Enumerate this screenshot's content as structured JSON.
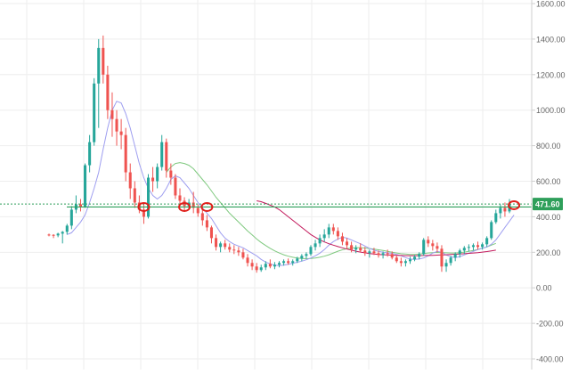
{
  "chart_data": {
    "type": "candlestick",
    "title": "",
    "xlabel": "",
    "ylabel": "",
    "ylim": [
      -460,
      1620
    ],
    "y_axis_side": "right",
    "y_ticks": [
      "1600.00",
      "1400.00",
      "1200.00",
      "1000.00",
      "800.00",
      "600.00",
      "400.00",
      "200.00",
      "0.00",
      "-200.00",
      "-400.00"
    ],
    "y_tick_values": [
      1600,
      1400,
      1200,
      1000,
      800,
      600,
      400,
      200,
      0,
      -200,
      -400
    ],
    "grid": true,
    "current_price_label": "471.60",
    "current_price": 471.6,
    "support_level": 455,
    "colors": {
      "up": "#26a69a",
      "down": "#ef5350",
      "price_line": "#2e9f5a",
      "price_badge": "#2e9f5a",
      "ma_fast": "#9e9ef0",
      "ma_mid": "#7fc97f",
      "ma_slow": "#c2185b",
      "markers": "#e0201b",
      "axis_text": "#666666",
      "grid": "#eeeeee"
    },
    "candles": [
      [
        300,
        305,
        290,
        298
      ],
      [
        298,
        302,
        280,
        295
      ],
      [
        295,
        310,
        285,
        305
      ],
      [
        305,
        320,
        250,
        315
      ],
      [
        315,
        360,
        300,
        350
      ],
      [
        350,
        460,
        330,
        440
      ],
      [
        440,
        520,
        420,
        470
      ],
      [
        470,
        500,
        430,
        455
      ],
      [
        455,
        700,
        450,
        690
      ],
      [
        690,
        860,
        650,
        820
      ],
      [
        820,
        1180,
        800,
        1150
      ],
      [
        1150,
        1400,
        900,
        1350
      ],
      [
        1350,
        1420,
        1150,
        1200
      ],
      [
        1200,
        1250,
        950,
        1000
      ],
      [
        1000,
        1100,
        850,
        950
      ],
      [
        950,
        1000,
        800,
        880
      ],
      [
        880,
        950,
        780,
        860
      ],
      [
        860,
        900,
        600,
        650
      ],
      [
        650,
        700,
        500,
        560
      ],
      [
        560,
        600,
        450,
        480
      ],
      [
        480,
        520,
        420,
        440
      ],
      [
        440,
        470,
        360,
        400
      ],
      [
        400,
        640,
        390,
        620
      ],
      [
        620,
        680,
        540,
        600
      ],
      [
        600,
        700,
        560,
        680
      ],
      [
        680,
        860,
        660,
        820
      ],
      [
        820,
        840,
        620,
        660
      ],
      [
        660,
        700,
        580,
        620
      ],
      [
        620,
        640,
        500,
        520
      ],
      [
        520,
        560,
        470,
        490
      ],
      [
        490,
        510,
        430,
        460
      ],
      [
        460,
        500,
        440,
        480
      ],
      [
        480,
        540,
        420,
        450
      ],
      [
        450,
        470,
        400,
        420
      ],
      [
        420,
        450,
        350,
        380
      ],
      [
        380,
        410,
        320,
        340
      ],
      [
        340,
        350,
        250,
        280
      ],
      [
        280,
        300,
        210,
        230
      ],
      [
        230,
        260,
        200,
        250
      ],
      [
        250,
        270,
        215,
        230
      ],
      [
        230,
        250,
        200,
        215
      ],
      [
        215,
        240,
        190,
        210
      ],
      [
        210,
        230,
        180,
        200
      ],
      [
        200,
        220,
        160,
        170
      ],
      [
        170,
        190,
        120,
        140
      ],
      [
        140,
        160,
        100,
        120
      ],
      [
        120,
        140,
        85,
        100
      ],
      [
        100,
        130,
        90,
        115
      ],
      [
        115,
        150,
        100,
        135
      ],
      [
        135,
        160,
        110,
        120
      ],
      [
        120,
        145,
        105,
        130
      ],
      [
        130,
        150,
        115,
        140
      ],
      [
        140,
        160,
        125,
        150
      ],
      [
        150,
        165,
        130,
        140
      ],
      [
        140,
        160,
        125,
        150
      ],
      [
        150,
        175,
        140,
        165
      ],
      [
        165,
        190,
        150,
        180
      ],
      [
        180,
        200,
        165,
        190
      ],
      [
        190,
        240,
        180,
        230
      ],
      [
        230,
        270,
        210,
        250
      ],
      [
        250,
        300,
        230,
        280
      ],
      [
        280,
        330,
        260,
        300
      ],
      [
        300,
        360,
        280,
        340
      ],
      [
        340,
        360,
        300,
        320
      ],
      [
        320,
        340,
        270,
        290
      ],
      [
        290,
        310,
        240,
        260
      ],
      [
        260,
        280,
        220,
        240
      ],
      [
        240,
        260,
        200,
        215
      ],
      [
        215,
        240,
        195,
        225
      ],
      [
        225,
        250,
        200,
        210
      ],
      [
        210,
        230,
        180,
        195
      ],
      [
        195,
        215,
        170,
        205
      ],
      [
        205,
        225,
        185,
        195
      ],
      [
        195,
        210,
        170,
        185
      ],
      [
        185,
        205,
        165,
        195
      ],
      [
        195,
        215,
        175,
        190
      ],
      [
        190,
        205,
        160,
        170
      ],
      [
        170,
        185,
        140,
        150
      ],
      [
        150,
        170,
        120,
        140
      ],
      [
        140,
        160,
        120,
        150
      ],
      [
        150,
        175,
        135,
        160
      ],
      [
        160,
        185,
        150,
        175
      ],
      [
        175,
        200,
        160,
        190
      ],
      [
        190,
        280,
        180,
        270
      ],
      [
        270,
        290,
        230,
        250
      ],
      [
        250,
        270,
        210,
        235
      ],
      [
        235,
        255,
        200,
        220
      ],
      [
        220,
        240,
        90,
        120
      ],
      [
        120,
        160,
        90,
        140
      ],
      [
        140,
        180,
        125,
        170
      ],
      [
        170,
        200,
        150,
        190
      ],
      [
        190,
        220,
        170,
        210
      ],
      [
        210,
        235,
        190,
        225
      ],
      [
        225,
        245,
        205,
        230
      ],
      [
        230,
        250,
        210,
        240
      ],
      [
        240,
        260,
        215,
        230
      ],
      [
        230,
        255,
        215,
        245
      ],
      [
        245,
        290,
        230,
        280
      ],
      [
        280,
        380,
        270,
        370
      ],
      [
        370,
        440,
        360,
        420
      ],
      [
        420,
        470,
        390,
        450
      ],
      [
        450,
        480,
        400,
        430
      ],
      [
        430,
        500,
        420,
        471.6
      ]
    ],
    "ma_fast": [
      null,
      null,
      null,
      null,
      300,
      310,
      340,
      370,
      410,
      480,
      560,
      650,
      780,
      900,
      1000,
      1050,
      1040,
      980,
      900,
      800,
      700,
      620,
      560,
      520,
      500,
      520,
      560,
      610,
      630,
      620,
      590,
      560,
      520,
      480,
      450,
      420,
      390,
      350,
      310,
      280,
      260,
      245,
      235,
      225,
      210,
      195,
      180,
      160,
      145,
      135,
      128,
      125,
      128,
      132,
      138,
      144,
      150,
      158,
      168,
      180,
      195,
      215,
      240,
      260,
      275,
      285,
      280,
      270,
      258,
      248,
      235,
      222,
      212,
      205,
      200,
      197,
      194,
      188,
      180,
      170,
      162,
      160,
      162,
      168,
      180,
      195,
      205,
      200,
      185,
      175,
      170,
      175,
      185,
      195,
      205,
      215,
      222,
      230,
      245,
      270,
      305,
      340,
      375,
      410
    ],
    "ma_mid": [
      null,
      null,
      null,
      null,
      null,
      null,
      null,
      null,
      null,
      null,
      null,
      null,
      null,
      null,
      null,
      null,
      null,
      null,
      null,
      null,
      null,
      null,
      null,
      null,
      null,
      null,
      650,
      680,
      700,
      705,
      700,
      690,
      670,
      640,
      610,
      580,
      545,
      510,
      480,
      450,
      420,
      395,
      370,
      345,
      320,
      298,
      275,
      255,
      238,
      222,
      208,
      196,
      186,
      178,
      172,
      168,
      165,
      164,
      165,
      168,
      172,
      178,
      186,
      196,
      206,
      214,
      220,
      224,
      226,
      226,
      224,
      221,
      218,
      214,
      210,
      205,
      200,
      196,
      192,
      190,
      188,
      188,
      190,
      193,
      196,
      198,
      199,
      198,
      197,
      196,
      196,
      198,
      201,
      205,
      210,
      216,
      222,
      230,
      240,
      250
    ],
    "ma_slow": [
      null,
      null,
      null,
      null,
      null,
      null,
      null,
      null,
      null,
      null,
      null,
      null,
      null,
      null,
      null,
      null,
      null,
      null,
      null,
      null,
      null,
      null,
      null,
      null,
      null,
      null,
      null,
      null,
      null,
      null,
      null,
      null,
      null,
      null,
      null,
      null,
      null,
      null,
      null,
      null,
      null,
      null,
      null,
      null,
      null,
      null,
      490,
      485,
      475,
      465,
      455,
      440,
      420,
      400,
      380,
      360,
      340,
      320,
      300,
      285,
      270,
      258,
      248,
      240,
      232,
      225,
      218,
      212,
      206,
      201,
      197,
      193,
      190,
      188,
      186,
      185,
      184,
      183,
      182,
      181,
      181,
      181,
      181,
      182,
      182,
      183,
      184,
      185,
      186,
      188,
      189,
      190,
      192,
      194,
      196,
      198,
      201,
      204,
      208,
      212
    ],
    "markers": [
      {
        "index": 21,
        "value": 455
      },
      {
        "index": 30,
        "value": 455
      },
      {
        "index": 35,
        "value": 455
      },
      {
        "index": 103,
        "value": 465
      }
    ]
  }
}
